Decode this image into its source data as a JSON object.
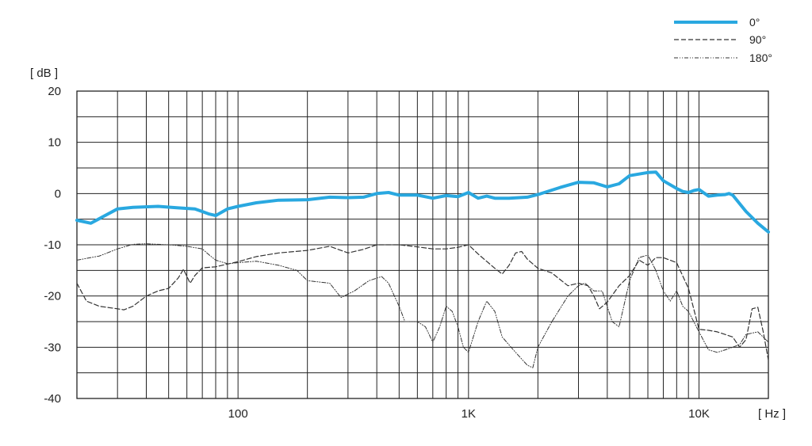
{
  "chart_data": {
    "type": "line",
    "title": "",
    "ylabel": "[ dB ]",
    "xlabel": "[ Hz ]",
    "xscale": "log",
    "xlim": [
      20,
      20000
    ],
    "ylim": [
      -40,
      20
    ],
    "yticks": [
      20,
      10,
      0,
      -10,
      -20,
      -30,
      -40
    ],
    "ytick_labels": [
      "20",
      "10",
      "0",
      "-10",
      "-20",
      "-30",
      "-40"
    ],
    "xticks": [
      100,
      1000,
      10000
    ],
    "xtick_labels": [
      "100",
      "1K",
      "10K"
    ],
    "grid": true,
    "legend": "top-right",
    "series": [
      {
        "name": "0°",
        "color": "#29a8e0",
        "style": "solid",
        "points": [
          [
            20,
            -5.2
          ],
          [
            23,
            -5.8
          ],
          [
            26,
            -4.5
          ],
          [
            30,
            -3
          ],
          [
            35,
            -2.7
          ],
          [
            45,
            -2.5
          ],
          [
            55,
            -2.8
          ],
          [
            65,
            -3
          ],
          [
            75,
            -4
          ],
          [
            80,
            -4.3
          ],
          [
            90,
            -3
          ],
          [
            100,
            -2.5
          ],
          [
            120,
            -1.8
          ],
          [
            150,
            -1.3
          ],
          [
            200,
            -1.2
          ],
          [
            250,
            -0.7
          ],
          [
            300,
            -0.8
          ],
          [
            350,
            -0.7
          ],
          [
            400,
            0
          ],
          [
            450,
            0.2
          ],
          [
            500,
            -0.3
          ],
          [
            600,
            -0.3
          ],
          [
            700,
            -0.9
          ],
          [
            800,
            -0.4
          ],
          [
            900,
            -0.6
          ],
          [
            1000,
            0.2
          ],
          [
            1100,
            -0.9
          ],
          [
            1200,
            -0.5
          ],
          [
            1300,
            -0.9
          ],
          [
            1500,
            -0.9
          ],
          [
            1800,
            -0.7
          ],
          [
            2000,
            -0.2
          ],
          [
            2500,
            1.2
          ],
          [
            3000,
            2.2
          ],
          [
            3500,
            2.1
          ],
          [
            4000,
            1.3
          ],
          [
            4500,
            1.9
          ],
          [
            5000,
            3.5
          ],
          [
            6000,
            4.1
          ],
          [
            6500,
            4.2
          ],
          [
            7000,
            2.5
          ],
          [
            8000,
            1
          ],
          [
            8500,
            0.4
          ],
          [
            9000,
            0.2
          ],
          [
            9500,
            0.6
          ],
          [
            10000,
            0.8
          ],
          [
            11000,
            -0.5
          ],
          [
            12000,
            -0.3
          ],
          [
            13000,
            -0.2
          ],
          [
            13500,
            0
          ],
          [
            14000,
            -0.3
          ],
          [
            16000,
            -3.5
          ],
          [
            18000,
            -5.8
          ],
          [
            20000,
            -7.5
          ]
        ]
      },
      {
        "name": "90°",
        "color": "#333333",
        "style": "dashed",
        "points": [
          [
            20,
            -17.5
          ],
          [
            22,
            -21
          ],
          [
            25,
            -22
          ],
          [
            30,
            -22.5
          ],
          [
            32,
            -22.7
          ],
          [
            35,
            -22
          ],
          [
            40,
            -20
          ],
          [
            45,
            -19
          ],
          [
            50,
            -18.5
          ],
          [
            55,
            -16.5
          ],
          [
            58,
            -14.8
          ],
          [
            62,
            -17.5
          ],
          [
            65,
            -16
          ],
          [
            70,
            -14.5
          ],
          [
            80,
            -14.3
          ],
          [
            100,
            -13.3
          ],
          [
            120,
            -12.3
          ],
          [
            150,
            -11.6
          ],
          [
            200,
            -11.1
          ],
          [
            250,
            -10.3
          ],
          [
            300,
            -11.6
          ],
          [
            350,
            -10.9
          ],
          [
            400,
            -10
          ],
          [
            500,
            -10
          ],
          [
            600,
            -10.4
          ],
          [
            700,
            -10.8
          ],
          [
            800,
            -10.8
          ],
          [
            900,
            -10.5
          ],
          [
            1000,
            -10
          ],
          [
            1100,
            -11.8
          ],
          [
            1300,
            -14.6
          ],
          [
            1400,
            -15.7
          ],
          [
            1500,
            -14
          ],
          [
            1600,
            -11.6
          ],
          [
            1700,
            -11.3
          ],
          [
            1800,
            -12.8
          ],
          [
            2000,
            -14.6
          ],
          [
            2300,
            -15.5
          ],
          [
            2500,
            -16.8
          ],
          [
            2700,
            -18
          ],
          [
            3000,
            -17.5
          ],
          [
            3300,
            -18
          ],
          [
            3500,
            -20
          ],
          [
            3700,
            -22.5
          ],
          [
            4000,
            -21.2
          ],
          [
            4500,
            -18
          ],
          [
            5000,
            -16
          ],
          [
            5500,
            -13
          ],
          [
            6000,
            -14
          ],
          [
            6500,
            -12.5
          ],
          [
            7000,
            -12.5
          ],
          [
            8000,
            -13.5
          ],
          [
            9000,
            -18.5
          ],
          [
            10000,
            -26.5
          ],
          [
            11000,
            -26.7
          ],
          [
            12000,
            -27
          ],
          [
            14000,
            -28
          ],
          [
            15000,
            -30
          ],
          [
            16000,
            -28.5
          ],
          [
            17000,
            -22.5
          ],
          [
            18000,
            -22.2
          ],
          [
            19000,
            -27
          ],
          [
            20000,
            -32.5
          ]
        ]
      },
      {
        "name": "180°",
        "color": "#333333",
        "style": "dashdotdot",
        "points": [
          [
            20,
            -13
          ],
          [
            25,
            -12.2
          ],
          [
            30,
            -10.8
          ],
          [
            35,
            -9.9
          ],
          [
            40,
            -9.8
          ],
          [
            50,
            -10
          ],
          [
            60,
            -10.3
          ],
          [
            70,
            -10.8
          ],
          [
            75,
            -12
          ],
          [
            80,
            -13
          ],
          [
            90,
            -13.7
          ],
          [
            100,
            -13.5
          ],
          [
            120,
            -13.2
          ],
          [
            150,
            -14
          ],
          [
            180,
            -15
          ],
          [
            200,
            -17
          ],
          [
            250,
            -17.5
          ],
          [
            280,
            -20.3
          ],
          [
            320,
            -19
          ],
          [
            370,
            -17
          ],
          [
            420,
            -16.2
          ],
          [
            450,
            -17.5
          ],
          [
            500,
            -22
          ],
          [
            530,
            -25
          ],
          [
            600,
            -25
          ],
          [
            650,
            -26
          ],
          [
            700,
            -29
          ],
          [
            750,
            -26
          ],
          [
            800,
            -22
          ],
          [
            850,
            -23
          ],
          [
            900,
            -26
          ],
          [
            950,
            -30
          ],
          [
            1000,
            -31
          ],
          [
            1100,
            -25
          ],
          [
            1200,
            -21
          ],
          [
            1300,
            -23
          ],
          [
            1400,
            -28
          ],
          [
            1600,
            -31
          ],
          [
            1800,
            -33.5
          ],
          [
            1900,
            -34
          ],
          [
            2000,
            -30
          ],
          [
            2300,
            -25
          ],
          [
            2700,
            -20
          ],
          [
            3000,
            -18
          ],
          [
            3200,
            -17.5
          ],
          [
            3500,
            -19
          ],
          [
            3800,
            -19
          ],
          [
            4200,
            -25
          ],
          [
            4500,
            -26
          ],
          [
            5000,
            -17
          ],
          [
            5500,
            -12.5
          ],
          [
            6000,
            -12
          ],
          [
            6500,
            -15
          ],
          [
            7000,
            -19
          ],
          [
            7500,
            -21
          ],
          [
            8000,
            -19
          ],
          [
            8500,
            -22
          ],
          [
            9000,
            -23
          ],
          [
            10000,
            -27
          ],
          [
            11000,
            -30.5
          ],
          [
            12000,
            -31
          ],
          [
            13000,
            -30.5
          ],
          [
            15000,
            -29.5
          ],
          [
            16000,
            -27.5
          ],
          [
            18000,
            -27
          ],
          [
            20000,
            -29
          ]
        ]
      }
    ]
  }
}
